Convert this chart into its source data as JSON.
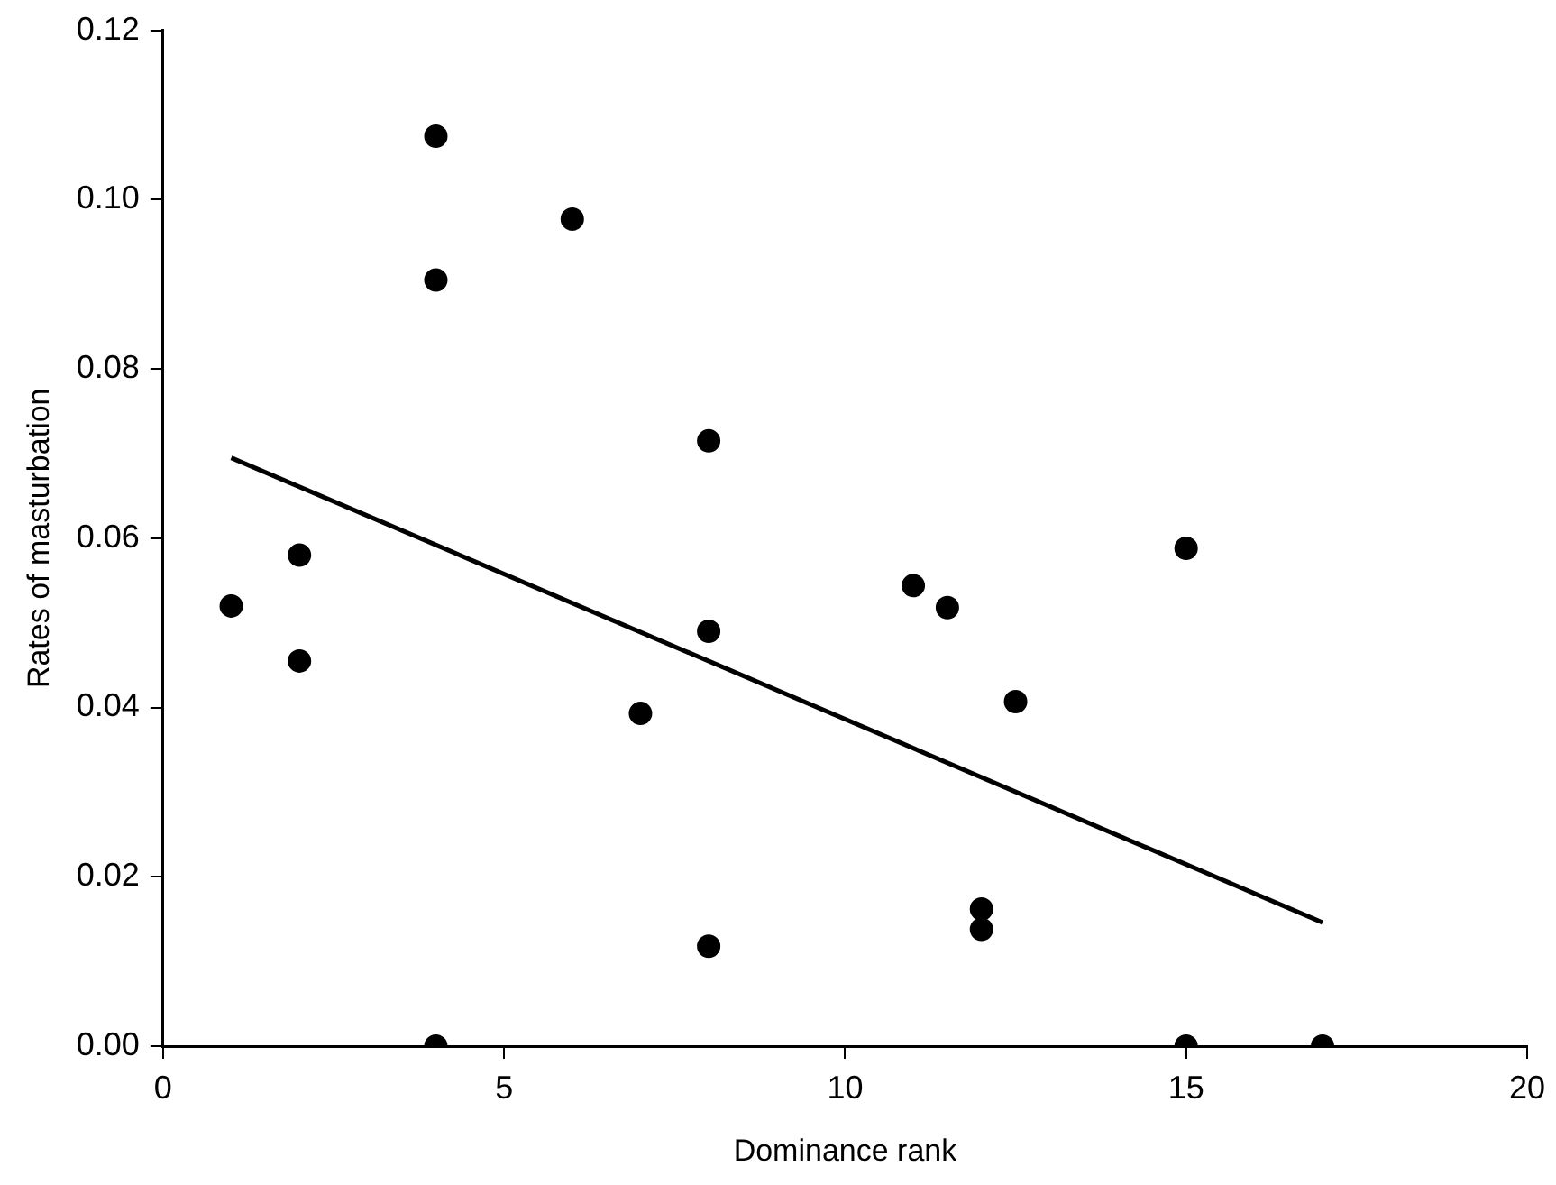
{
  "chart_data": {
    "type": "scatter",
    "xlabel": "Dominance rank",
    "ylabel": "Rates of masturbation",
    "xlim": [
      0,
      20
    ],
    "xticks": [
      0,
      5,
      10,
      15,
      20
    ],
    "ylim": [
      0,
      0.12
    ],
    "yticks": [
      {
        "value": 0,
        "label": "0.00"
      },
      {
        "value": 0.02,
        "label": "0.02"
      },
      {
        "value": 0.04,
        "label": "0.04"
      },
      {
        "value": 0.06,
        "label": "0.06"
      },
      {
        "value": 0.08,
        "label": "0.08"
      },
      {
        "value": 0.1,
        "label": "0.10"
      },
      {
        "value": 0.12,
        "label": "0.12"
      }
    ],
    "grid": false,
    "legend": false,
    "marker": "circle",
    "series": [
      {
        "color": "#000000",
        "x": [
          1,
          2,
          2,
          4,
          4,
          4,
          6,
          7,
          8,
          8,
          8,
          11,
          11.5,
          12,
          12,
          12.5,
          15,
          15,
          17
        ],
        "values": [
          0.052,
          0.058,
          0.0455,
          0.1075,
          0.0905,
          0,
          0.0977,
          0.0393,
          0.0715,
          0.049,
          0.0118,
          0.0544,
          0.0518,
          0.0162,
          0.0138,
          0.0407,
          0.0588,
          0,
          0
        ]
      },
      {
        "type": "line",
        "color": "#000000",
        "marker": "none",
        "line_style": "solid",
        "x": [
          1,
          17
        ],
        "values": [
          0.0695,
          0.0146
        ]
      }
    ]
  }
}
